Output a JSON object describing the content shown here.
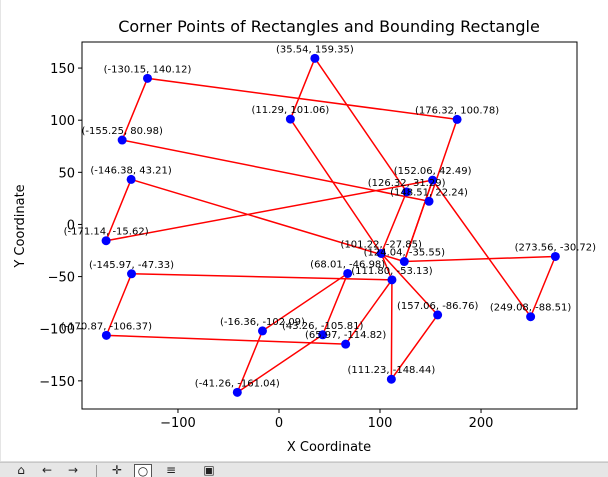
{
  "chart_data": {
    "type": "scatter",
    "title": "Corner Points of Rectangles and Bounding Rectangle",
    "xlabel": "X Coordinate",
    "ylabel": "Y Coordinate",
    "xlim": [
      -195,
      295
    ],
    "ylim": [
      -177,
      175
    ],
    "xticks": [
      -100,
      0,
      100,
      200
    ],
    "yticks": [
      -150,
      -100,
      -50,
      0,
      50,
      100,
      150
    ],
    "xtick_labels": [
      "−100",
      "0",
      "100",
      "200"
    ],
    "ytick_labels": [
      "−150",
      "−100",
      "−50",
      "0",
      "50",
      "100",
      "150"
    ],
    "grid": false,
    "line_color": "#ff0000",
    "point_color": "#0000ff",
    "rectangles": [
      [
        [
          -155.25,
          80.98
        ],
        [
          -130.15,
          140.12
        ],
        [
          176.32,
          100.78
        ],
        [
          148.51,
          22.24
        ]
      ],
      [
        [
          -146.38,
          43.21
        ],
        [
          124.04,
          -35.55
        ],
        [
          152.06,
          42.49
        ],
        [
          -171.14,
          -15.62
        ]
      ],
      [
        [
          -145.97,
          -47.33
        ],
        [
          111.8,
          -53.13
        ],
        [
          65.97,
          -114.82
        ],
        [
          -170.87,
          -106.37
        ]
      ],
      [
        [
          11.29,
          101.06
        ],
        [
          35.54,
          159.35
        ],
        [
          126.32,
          31.29
        ],
        [
          101.22,
          -27.85
        ]
      ],
      [
        [
          43.26,
          -105.81
        ],
        [
          68.01,
          -46.98
        ],
        [
          -16.36,
          -102.09
        ],
        [
          -41.26,
          -161.04
        ]
      ],
      [
        [
          111.8,
          -53.13
        ],
        [
          111.23,
          -148.44
        ],
        [
          157.06,
          -86.76
        ],
        [
          101.22,
          -27.85
        ]
      ],
      [
        [
          273.56,
          -30.72
        ],
        [
          249.08,
          -88.51
        ],
        [
          152.06,
          42.49
        ],
        [
          124.04,
          -35.55
        ]
      ]
    ],
    "points": [
      {
        "x": 35.54,
        "y": 159.35,
        "label": "(35.54, 159.35)"
      },
      {
        "x": -130.15,
        "y": 140.12,
        "label": "(-130.15, 140.12)"
      },
      {
        "x": 11.29,
        "y": 101.06,
        "label": "(11.29, 101.06)"
      },
      {
        "x": 176.32,
        "y": 100.78,
        "label": "(176.32, 100.78)"
      },
      {
        "x": -155.25,
        "y": 80.98,
        "label": "(-155.25, 80.98)"
      },
      {
        "x": -146.38,
        "y": 43.21,
        "label": "(-146.38, 43.21)"
      },
      {
        "x": 152.06,
        "y": 42.49,
        "label": "(152.06, 42.49)"
      },
      {
        "x": 126.32,
        "y": 31.29,
        "label": "(126.32, 31.29)"
      },
      {
        "x": 148.51,
        "y": 22.24,
        "label": "(148.51, 22.24)"
      },
      {
        "x": -171.14,
        "y": -15.62,
        "label": "(-171.14, -15.62)"
      },
      {
        "x": 101.22,
        "y": -27.85,
        "label": "(101.22, -27.85)"
      },
      {
        "x": 273.56,
        "y": -30.72,
        "label": "(273.56, -30.72)"
      },
      {
        "x": 124.04,
        "y": -35.55,
        "label": "(124.04, -35.55)"
      },
      {
        "x": 68.01,
        "y": -46.98,
        "label": "(68.01, -46.98)"
      },
      {
        "x": -145.97,
        "y": -47.33,
        "label": "(-145.97, -47.33)"
      },
      {
        "x": 111.8,
        "y": -53.13,
        "label": "(111.80, -53.13)"
      },
      {
        "x": 157.06,
        "y": -86.76,
        "label": "(157.06, -86.76)"
      },
      {
        "x": 249.08,
        "y": -88.51,
        "label": "(249.08, -88.51)"
      },
      {
        "x": -16.36,
        "y": -102.09,
        "label": "(-16.36, -102.09)"
      },
      {
        "x": 43.26,
        "y": -105.81,
        "label": "(43.26, -105.81)"
      },
      {
        "x": -170.87,
        "y": -106.37,
        "label": "(-170.87, -106.37)"
      },
      {
        "x": 65.97,
        "y": -114.82,
        "label": "(65.97, -114.82)"
      },
      {
        "x": 111.23,
        "y": -148.44,
        "label": "(111.23, -148.44)"
      },
      {
        "x": -41.26,
        "y": -161.04,
        "label": "(-41.26, -161.04)"
      }
    ]
  },
  "toolbar": {
    "items": [
      {
        "name": "home-icon",
        "glyph": "⌂"
      },
      {
        "name": "back-icon",
        "glyph": "←"
      },
      {
        "name": "forward-icon",
        "glyph": "→"
      },
      {
        "name": "pan-icon",
        "glyph": "✛"
      },
      {
        "name": "zoom-icon",
        "glyph": "○"
      },
      {
        "name": "configure-subplots-icon",
        "glyph": "≡"
      },
      {
        "name": "save-icon",
        "glyph": "▣"
      }
    ]
  }
}
